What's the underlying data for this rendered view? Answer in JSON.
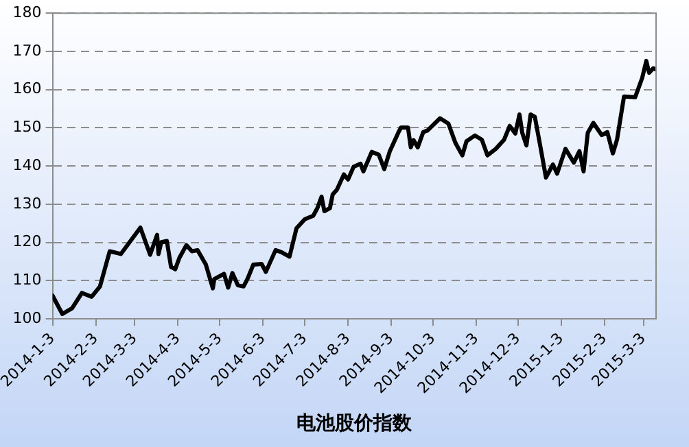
{
  "chart_data": {
    "type": "line",
    "xlabel": "电池股价指数",
    "x": [
      "2014-01-03",
      "2014-01-10",
      "2014-01-17",
      "2014-01-24",
      "2014-01-31",
      "2014-02-06",
      "2014-02-13",
      "2014-02-21",
      "2014-03-07",
      "2014-03-14",
      "2014-03-19",
      "2014-03-20",
      "2014-03-22",
      "2014-03-26",
      "2014-03-29",
      "2014-04-01",
      "2014-04-04",
      "2014-04-09",
      "2014-04-13",
      "2014-04-17",
      "2014-04-23",
      "2014-04-28",
      "2014-04-29",
      "2014-05-06",
      "2014-05-09",
      "2014-05-12",
      "2014-05-16",
      "2014-05-20",
      "2014-05-23",
      "2014-05-27",
      "2014-06-02",
      "2014-06-05",
      "2014-06-12",
      "2014-06-16",
      "2014-06-22",
      "2014-06-27",
      "2014-07-03",
      "2014-07-09",
      "2014-07-12",
      "2014-07-15",
      "2014-07-17",
      "2014-07-21",
      "2014-07-23",
      "2014-07-26",
      "2014-07-31",
      "2014-08-03",
      "2014-08-07",
      "2014-08-12",
      "2014-08-14",
      "2014-08-20",
      "2014-08-25",
      "2014-08-29",
      "2014-09-02",
      "2014-09-08",
      "2014-09-10",
      "2014-09-15",
      "2014-09-17",
      "2014-09-19",
      "2014-09-22",
      "2014-09-26",
      "2014-09-29",
      "2014-10-08",
      "2014-10-14",
      "2014-10-19",
      "2014-10-24",
      "2014-10-27",
      "2014-11-02",
      "2014-11-07",
      "2014-11-11",
      "2014-11-17",
      "2014-11-23",
      "2014-11-27",
      "2014-12-01",
      "2014-12-04",
      "2014-12-06",
      "2014-12-09",
      "2014-12-12",
      "2014-12-15",
      "2014-12-19",
      "2014-12-23",
      "2014-12-28",
      "2014-12-31",
      "2015-01-06",
      "2015-01-12",
      "2015-01-16",
      "2015-01-19",
      "2015-01-22",
      "2015-01-26",
      "2015-02-01",
      "2015-02-05",
      "2015-02-09",
      "2015-02-12",
      "2015-02-17",
      "2015-02-25",
      "2015-03-02",
      "2015-03-05",
      "2015-03-07",
      "2015-03-10",
      "2015-03-11"
    ],
    "series": [
      {
        "color": "#000000",
        "values": [
          106.1,
          101.3,
          102.8,
          106.8,
          105.8,
          108.5,
          117.7,
          117,
          123.9,
          116.8,
          122,
          117,
          120.1,
          120.4,
          113.6,
          113,
          116,
          119.3,
          117.7,
          118,
          114.2,
          108,
          110.4,
          111.8,
          108.2,
          112,
          108.8,
          108.5,
          110.6,
          114.2,
          114.4,
          112.3,
          118,
          117.5,
          116.3,
          123.7,
          126.1,
          127,
          129,
          132,
          128.2,
          129,
          132.6,
          133.8,
          137.8,
          136.5,
          139.8,
          140.6,
          138.6,
          143.7,
          143,
          139.2,
          143.9,
          148.7,
          150.1,
          150.1,
          144.9,
          146.8,
          144.9,
          148.9,
          149.3,
          152.5,
          151.1,
          146.1,
          142.8,
          146.5,
          148,
          146.9,
          142.8,
          144.5,
          146.9,
          150.5,
          148.5,
          153.5,
          148.7,
          145.4,
          153.5,
          152.9,
          145.1,
          137,
          140.4,
          138,
          144.5,
          140.9,
          143.9,
          138.6,
          148.7,
          151.3,
          148.1,
          148.9,
          143.3,
          146.9,
          158.2,
          158,
          163,
          167.5,
          164.4,
          165.6,
          165.4
        ]
      }
    ],
    "xlim": [
      "2014-01-03",
      "2015-03-12"
    ],
    "xticks": [
      {
        "value": "2014-01-03",
        "label": "2014-1-3"
      },
      {
        "value": "2014-02-03",
        "label": "2014-2-3"
      },
      {
        "value": "2014-03-03",
        "label": "2014-3-3"
      },
      {
        "value": "2014-04-03",
        "label": "2014-4-3"
      },
      {
        "value": "2014-05-03",
        "label": "2014-5-3"
      },
      {
        "value": "2014-06-03",
        "label": "2014-6-3"
      },
      {
        "value": "2014-07-03",
        "label": "2014-7-3"
      },
      {
        "value": "2014-08-03",
        "label": "2014-8-3"
      },
      {
        "value": "2014-09-03",
        "label": "2014-9-3"
      },
      {
        "value": "2014-10-03",
        "label": "2014-10-3"
      },
      {
        "value": "2014-11-03",
        "label": "2014-11-3"
      },
      {
        "value": "2014-12-03",
        "label": "2014-12-3"
      },
      {
        "value": "2015-01-03",
        "label": "2015-1-3"
      },
      {
        "value": "2015-02-03",
        "label": "2015-2-3"
      },
      {
        "value": "2015-03-03",
        "label": "2015-3-3"
      }
    ],
    "ylim": [
      100,
      180
    ],
    "yticks": [
      100,
      110,
      120,
      130,
      140,
      150,
      160,
      170,
      180
    ],
    "grid": "y",
    "marker": "none",
    "line_style": "solid",
    "legend": false
  }
}
